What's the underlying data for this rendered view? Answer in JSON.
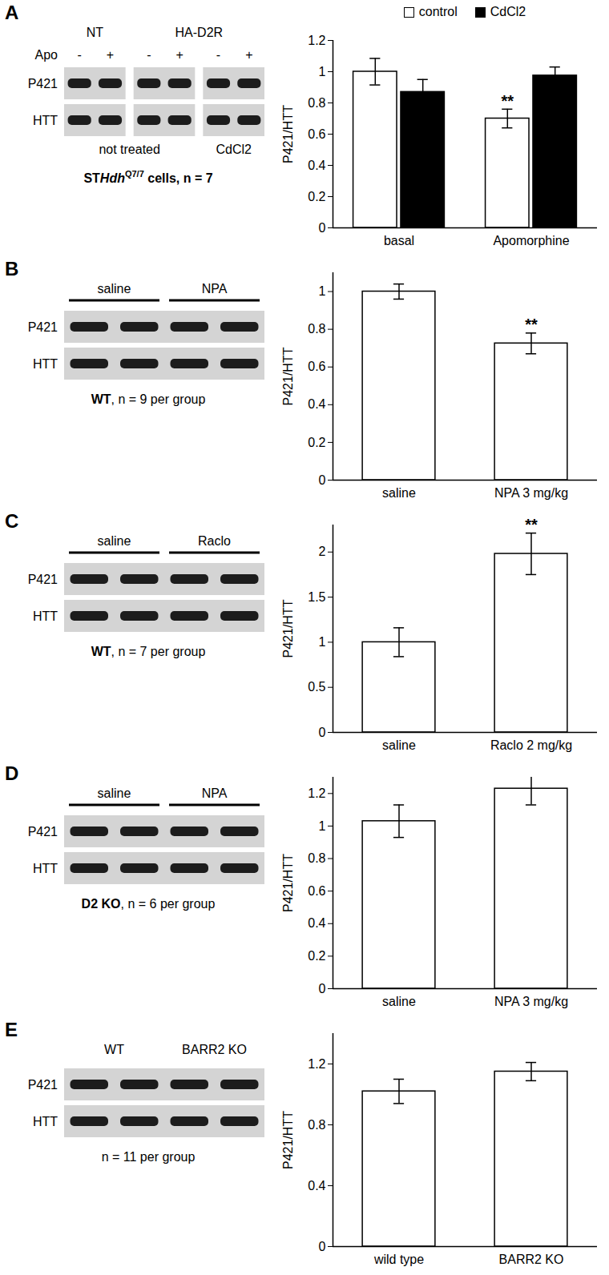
{
  "chart_data": [
    {
      "type": "bar",
      "categories": [
        "basal",
        "Apomorphine"
      ],
      "series": [
        {
          "name": "control",
          "color": "#ffffff",
          "values": [
            1.0,
            0.7
          ],
          "errors": [
            0.085,
            0.06
          ]
        },
        {
          "name": "CdCl2",
          "color": "#000000",
          "values": [
            0.87,
            0.975
          ],
          "errors": [
            0.08,
            0.055
          ]
        }
      ],
      "y_label": "P421/HTT",
      "ylim": [
        0,
        1.2
      ],
      "yticks": [
        0,
        0.2,
        0.4,
        0.6,
        0.8,
        1,
        1.2
      ],
      "legend": "top",
      "annotations": [
        {
          "text": "**",
          "category": "Apomorphine",
          "series": "control"
        }
      ]
    },
    {
      "type": "bar",
      "categories": [
        "saline",
        "NPA 3 mg/kg"
      ],
      "color": "#ffffff",
      "values": [
        1.0,
        0.725
      ],
      "errors": [
        0.04,
        0.055
      ],
      "y_label": "P421/HTT",
      "ylim": [
        0,
        1.1
      ],
      "yticks": [
        0,
        0.2,
        0.4,
        0.6,
        0.8,
        1
      ],
      "annotations": [
        {
          "text": "**",
          "category": "NPA 3 mg/kg"
        }
      ]
    },
    {
      "type": "bar",
      "categories": [
        "saline",
        "Raclo 2 mg/kg"
      ],
      "color": "#ffffff",
      "values": [
        1.0,
        1.98
      ],
      "errors": [
        0.16,
        0.23
      ],
      "y_label": "P421/HTT",
      "ylim": [
        0,
        2.3
      ],
      "yticks": [
        0,
        0.5,
        1,
        1.5,
        2
      ],
      "annotations": [
        {
          "text": "**",
          "category": "Raclo 2 mg/kg"
        }
      ]
    },
    {
      "type": "bar",
      "categories": [
        "saline",
        "NPA 3 mg/kg"
      ],
      "color": "#ffffff",
      "values": [
        1.03,
        1.23
      ],
      "errors": [
        0.1,
        0.1
      ],
      "y_label": "P421/HTT",
      "ylim": [
        0,
        1.3
      ],
      "yticks": [
        0,
        0.2,
        0.4,
        0.6,
        0.8,
        1,
        1.2
      ]
    },
    {
      "type": "bar",
      "categories": [
        "wild type",
        "BARR2 KO"
      ],
      "color": "#ffffff",
      "values": [
        1.02,
        1.15
      ],
      "errors": [
        0.08,
        0.06
      ],
      "y_label": "P421/HTT",
      "ylim": [
        0,
        1.4
      ],
      "yticks": [
        0,
        0.4,
        0.8,
        1.2
      ]
    }
  ],
  "blots": [
    {
      "panel_label": "A",
      "rows": [
        "P421",
        "HTT"
      ],
      "gels": [
        2,
        2,
        2
      ],
      "group_lines": false,
      "top_groups": [
        {
          "text": "NT",
          "lanes": 2
        },
        {
          "text": "HA-D2R",
          "lanes": 4
        }
      ],
      "treatment_label": "Apo",
      "lane_marks": [
        "-",
        "+",
        "-",
        "+",
        "-",
        "+"
      ],
      "bottom_groups": [
        {
          "text": "not treated",
          "lanes": 4
        },
        {
          "text": "CdCl2",
          "lanes": 2
        }
      ],
      "caption": [
        {
          "text": "ST",
          "style": "bold"
        },
        {
          "text": "Hdh",
          "style": "bold-italic"
        },
        {
          "text": "Q7/7",
          "style": "bold-super"
        },
        {
          "text": " cells",
          "style": "bold"
        },
        {
          "text": ", n = 7",
          "style": "bold"
        }
      ]
    },
    {
      "panel_label": "B",
      "rows": [
        "P421",
        "HTT"
      ],
      "gels": [
        4
      ],
      "group_lines": true,
      "top_groups": [
        {
          "text": "saline",
          "lanes": 2
        },
        {
          "text": "NPA",
          "lanes": 2
        }
      ],
      "caption": [
        {
          "text": "WT",
          "style": "bold"
        },
        {
          "text": ", n = 9 per group",
          "style": "plain"
        }
      ]
    },
    {
      "panel_label": "C",
      "rows": [
        "P421",
        "HTT"
      ],
      "gels": [
        4
      ],
      "group_lines": true,
      "top_groups": [
        {
          "text": "saline",
          "lanes": 2
        },
        {
          "text": "Raclo",
          "lanes": 2
        }
      ],
      "caption": [
        {
          "text": "WT",
          "style": "bold"
        },
        {
          "text": ", n = 7 per group",
          "style": "plain"
        }
      ]
    },
    {
      "panel_label": "D",
      "rows": [
        "P421",
        "HTT"
      ],
      "gels": [
        4
      ],
      "group_lines": true,
      "top_groups": [
        {
          "text": "saline",
          "lanes": 2
        },
        {
          "text": "NPA",
          "lanes": 2
        }
      ],
      "caption": [
        {
          "text": "D2 KO",
          "style": "bold"
        },
        {
          "text": ", n = 6 per group",
          "style": "plain"
        }
      ]
    },
    {
      "panel_label": "E",
      "rows": [
        "P421",
        "HTT"
      ],
      "gels": [
        4
      ],
      "group_lines": false,
      "top_groups": [
        {
          "text": "WT",
          "lanes": 2
        },
        {
          "text": "BARR2 KO",
          "lanes": 2
        }
      ],
      "caption": [
        {
          "text": "n = 11 per group",
          "style": "plain"
        }
      ]
    }
  ]
}
